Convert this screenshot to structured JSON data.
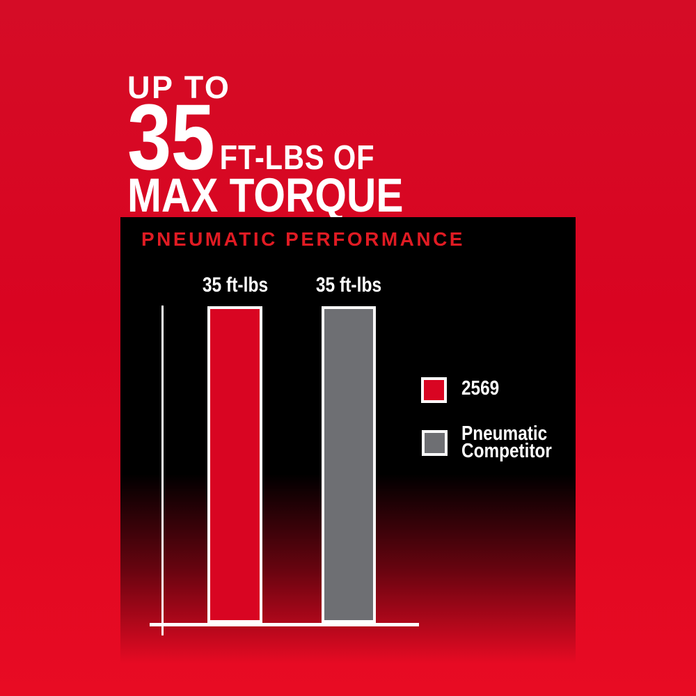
{
  "headline": {
    "line1": "UP TO",
    "number": "35",
    "unit": "FT-LBS OF",
    "line2": "MAX TORQUE"
  },
  "chart_data": {
    "type": "bar",
    "title": "PNEUMATIC PERFORMANCE",
    "categories": [
      "2569",
      "Pneumatic Competitor"
    ],
    "values": [
      35,
      35
    ],
    "value_unit": "ft-lbs",
    "bar_labels": [
      "35 ft-lbs",
      "35 ft-lbs"
    ],
    "ylim": [
      0,
      35
    ],
    "grid": false,
    "legend_position": "right",
    "legend": [
      {
        "label": "2569",
        "color": "#d90522"
      },
      {
        "label": "Pneumatic Competitor",
        "color": "#6e6f73"
      }
    ]
  },
  "colors": {
    "background": "#d90421",
    "panel": "#000000",
    "title_red": "#e01b23",
    "bar_red": "#d90522",
    "bar_gray": "#6e6f73",
    "axis_white": "#ffffff"
  }
}
